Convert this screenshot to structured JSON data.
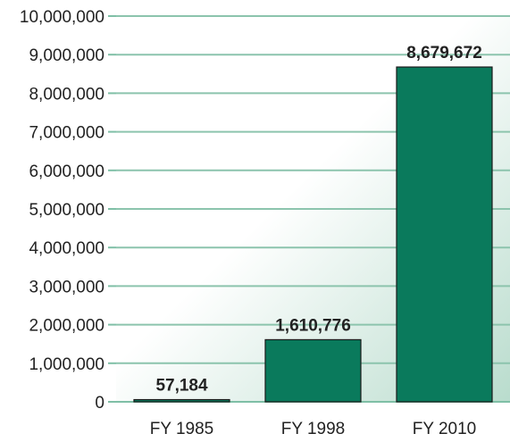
{
  "chart_data": {
    "type": "bar",
    "categories": [
      "FY 1985",
      "FY 1998",
      "FY 2010"
    ],
    "values": [
      57184,
      1610776,
      8679672
    ],
    "data_labels": [
      "57,184",
      "1,610,776",
      "8,679,672"
    ],
    "title": "",
    "xlabel": "",
    "ylabel": "",
    "ylim": [
      0,
      10000000
    ],
    "y_ticks": [
      0,
      1000000,
      2000000,
      3000000,
      4000000,
      5000000,
      6000000,
      7000000,
      8000000,
      9000000,
      10000000
    ],
    "y_tick_labels": [
      "0",
      "1,000,000",
      "2,000,000",
      "3,000,000",
      "4,000,000",
      "5,000,000",
      "6,000,000",
      "7,000,000",
      "8,000,000",
      "9,000,000",
      "10,000,000"
    ],
    "grid": true,
    "legend": false,
    "colors": {
      "bar": "#0a7a5c",
      "bar_outline": "#1a1a1a",
      "gridline": "#8cc4ad",
      "axis": "#7fbfa6",
      "background_start": "#ffffff",
      "background_end": "#b9dccd"
    }
  }
}
